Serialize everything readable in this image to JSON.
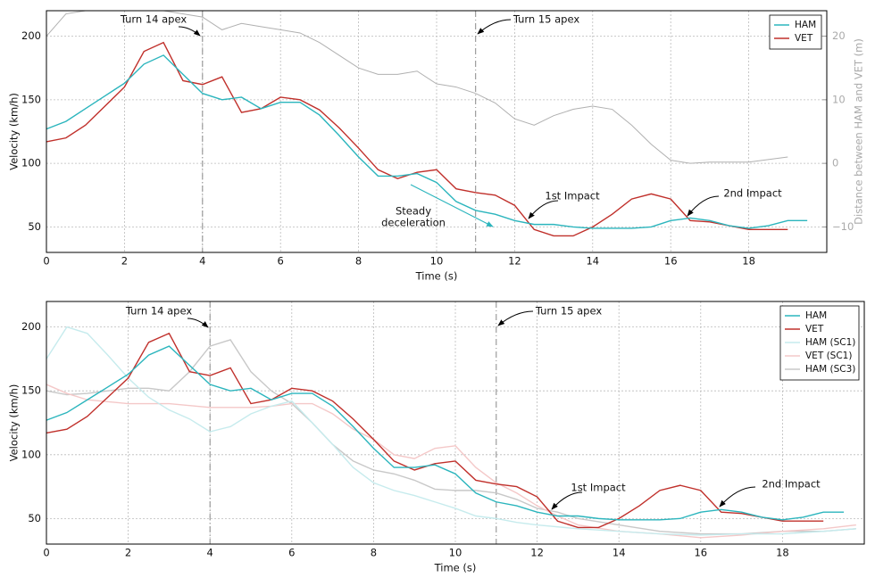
{
  "chart_data": [
    {
      "type": "line",
      "xlabel": "Time (s)",
      "ylabel": "Velocity (km/h)",
      "y2label": "Distance between HAM and VET (m)",
      "xlim": [
        0,
        20
      ],
      "xticks": [
        0,
        2,
        4,
        6,
        8,
        10,
        12,
        14,
        16,
        18
      ],
      "ylim": [
        30,
        220
      ],
      "yticks": [
        50,
        100,
        150,
        200
      ],
      "y2lim": [
        -14,
        24
      ],
      "y2ticks": [
        {
          "value": -10,
          "label": "−10"
        },
        0,
        10,
        20
      ],
      "grid": true,
      "legend": "upper right",
      "vlines": [
        4,
        11
      ],
      "annotations": [
        [
          "Turn 14 apex"
        ],
        [
          "Turn 15 apex"
        ],
        [
          "1st Impact"
        ],
        [
          "2nd Impact"
        ],
        [
          "Steady",
          "deceleration"
        ]
      ],
      "series": [
        {
          "name": "HAM",
          "color": "#2bb5bd",
          "x": [
            0,
            0.5,
            1,
            1.5,
            2,
            2.5,
            3,
            3.5,
            4,
            4.5,
            5,
            5.5,
            6,
            6.5,
            7,
            7.5,
            8,
            8.5,
            9,
            9.5,
            10,
            10.5,
            11,
            11.5,
            12,
            12.5,
            13,
            13.5,
            14,
            14.5,
            15,
            15.5,
            16,
            16.5,
            17,
            17.5,
            18,
            18.5,
            19,
            19.5
          ],
          "values": [
            127,
            133,
            143,
            153,
            163,
            178,
            185,
            170,
            155,
            150,
            152,
            143,
            148,
            148,
            138,
            122,
            105,
            90,
            90,
            92,
            85,
            70,
            63,
            60,
            55,
            52,
            52,
            50,
            49,
            49,
            49,
            50,
            55,
            57,
            55,
            51,
            49,
            51,
            55,
            55
          ]
        },
        {
          "name": "VET",
          "color": "#c0302b",
          "x": [
            0,
            0.5,
            1,
            1.5,
            2,
            2.5,
            3,
            3.5,
            4,
            4.5,
            5,
            5.5,
            6,
            6.5,
            7,
            7.5,
            8,
            8.5,
            9,
            9.5,
            10,
            10.5,
            11,
            11.5,
            12,
            12.5,
            13,
            13.5,
            14,
            14.5,
            15,
            15.5,
            16,
            16.5,
            17,
            17.5,
            18,
            18.5,
            19
          ],
          "values": [
            117,
            120,
            130,
            145,
            160,
            188,
            195,
            165,
            162,
            168,
            140,
            143,
            152,
            150,
            142,
            128,
            112,
            95,
            88,
            93,
            95,
            80,
            77,
            75,
            67,
            48,
            43,
            43,
            50,
            60,
            72,
            76,
            72,
            55,
            54,
            51,
            48,
            48,
            48
          ]
        },
        {
          "color": "#b0b0b0",
          "axis": "y2",
          "x": [
            0,
            0.5,
            1,
            2,
            3,
            4,
            4.5,
            5,
            5.5,
            6,
            6.5,
            7,
            7.5,
            8,
            8.5,
            9,
            9.5,
            10,
            10.5,
            11,
            11.5,
            12,
            12.5,
            13,
            13.5,
            14,
            14.5,
            15,
            15.5,
            16,
            16.5,
            17,
            18,
            19
          ],
          "values": [
            20,
            23.5,
            24,
            24,
            24,
            23,
            21,
            22,
            21.5,
            21,
            20.5,
            19,
            17,
            15,
            14,
            14,
            14.5,
            12.5,
            12,
            11,
            9.5,
            7,
            6,
            7.5,
            8.5,
            9,
            8.5,
            6,
            3,
            0.5,
            0,
            0.2,
            0.2,
            1
          ]
        }
      ]
    },
    {
      "type": "line",
      "xlabel": "Time (s)",
      "ylabel": "Velocity (km/h)",
      "xlim": [
        0,
        20
      ],
      "xticks": [
        0,
        2,
        4,
        6,
        8,
        10,
        12,
        14,
        16,
        18
      ],
      "ylim": [
        30,
        220
      ],
      "yticks": [
        50,
        100,
        150,
        200
      ],
      "grid": true,
      "legend": "upper right",
      "vlines": [
        4,
        11
      ],
      "annotations": [
        [
          "Turn 14 apex"
        ],
        [
          "Turn 15 apex"
        ],
        [
          "1st Impact"
        ],
        [
          "2nd Impact"
        ]
      ],
      "series": [
        {
          "name": "HAM",
          "color": "#2bb5bd",
          "x": [
            0,
            0.5,
            1,
            1.5,
            2,
            2.5,
            3,
            3.5,
            4,
            4.5,
            5,
            5.5,
            6,
            6.5,
            7,
            7.5,
            8,
            8.5,
            9,
            9.5,
            10,
            10.5,
            11,
            11.5,
            12,
            12.5,
            13,
            13.5,
            14,
            14.5,
            15,
            15.5,
            16,
            16.5,
            17,
            17.5,
            18,
            18.5,
            19,
            19.5
          ],
          "values": [
            127,
            133,
            143,
            153,
            163,
            178,
            185,
            170,
            155,
            150,
            152,
            143,
            148,
            148,
            138,
            122,
            105,
            90,
            90,
            92,
            85,
            70,
            63,
            60,
            55,
            52,
            52,
            50,
            49,
            49,
            49,
            50,
            55,
            57,
            55,
            51,
            49,
            51,
            55,
            55
          ]
        },
        {
          "name": "VET",
          "color": "#c0302b",
          "x": [
            0,
            0.5,
            1,
            1.5,
            2,
            2.5,
            3,
            3.5,
            4,
            4.5,
            5,
            5.5,
            6,
            6.5,
            7,
            7.5,
            8,
            8.5,
            9,
            9.5,
            10,
            10.5,
            11,
            11.5,
            12,
            12.5,
            13,
            13.5,
            14,
            14.5,
            15,
            15.5,
            16,
            16.5,
            17,
            17.5,
            18,
            18.5,
            19
          ],
          "values": [
            117,
            120,
            130,
            145,
            160,
            188,
            195,
            165,
            162,
            168,
            140,
            143,
            152,
            150,
            142,
            128,
            112,
            95,
            88,
            93,
            95,
            80,
            77,
            75,
            67,
            48,
            43,
            43,
            50,
            60,
            72,
            76,
            72,
            55,
            54,
            51,
            48,
            48,
            48
          ]
        },
        {
          "name": "HAM (SC1)",
          "color": "#c6ebed",
          "x": [
            0,
            0.5,
            1,
            1.5,
            2,
            2.5,
            3,
            3.5,
            4,
            4.5,
            5,
            5.5,
            6,
            6.5,
            7,
            7.5,
            8,
            8.5,
            9,
            9.5,
            10,
            10.5,
            11,
            11.5,
            12,
            13,
            14,
            15,
            16,
            17,
            18,
            19,
            19.8
          ],
          "values": [
            175,
            200,
            195,
            178,
            160,
            145,
            135,
            128,
            118,
            122,
            132,
            138,
            142,
            125,
            108,
            90,
            78,
            72,
            68,
            63,
            58,
            52,
            50,
            47,
            45,
            42,
            40,
            38,
            37,
            38,
            38,
            40,
            42
          ]
        },
        {
          "name": "VET (SC1)",
          "color": "#f4c8c8",
          "x": [
            0,
            0.5,
            1,
            2,
            3,
            4,
            5,
            5.5,
            6,
            6.5,
            7,
            7.5,
            8,
            8.5,
            9,
            9.5,
            10,
            10.5,
            11,
            11.5,
            12,
            12.5,
            13,
            14,
            15,
            16,
            17,
            18,
            19,
            19.8
          ],
          "values": [
            155,
            148,
            143,
            140,
            140,
            137,
            137,
            138,
            140,
            140,
            132,
            120,
            112,
            100,
            97,
            105,
            107,
            90,
            78,
            70,
            60,
            52,
            45,
            40,
            38,
            35,
            37,
            40,
            42,
            45
          ]
        },
        {
          "name": "HAM (SC3)",
          "color": "#c8c8c8",
          "x": [
            0,
            0.5,
            1,
            1.5,
            2,
            2.5,
            3,
            3.5,
            4,
            4.5,
            5,
            5.5,
            6,
            6.5,
            7,
            7.5,
            8,
            8.5,
            9,
            9.5,
            10,
            10.5,
            11,
            11.5,
            12,
            12.5,
            13,
            14,
            15,
            16,
            17,
            18,
            19,
            19.8
          ],
          "values": [
            150,
            147,
            148,
            150,
            152,
            152,
            150,
            165,
            185,
            190,
            165,
            150,
            140,
            125,
            108,
            95,
            88,
            85,
            80,
            73,
            72,
            72,
            70,
            65,
            58,
            55,
            50,
            45,
            40,
            38,
            38,
            40,
            40,
            42
          ]
        }
      ]
    }
  ]
}
